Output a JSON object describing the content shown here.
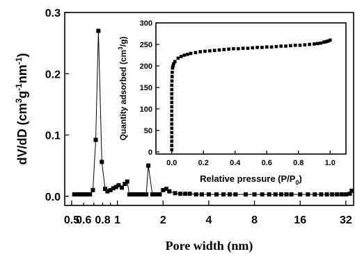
{
  "chart_data": [
    {
      "type": "line",
      "xscale": "log2",
      "xlabel": "Pore width (nm)",
      "ylabel": "dV/dD (cm3g-1nm-1)",
      "ylabel_parts": {
        "base": "dV/dD (cm",
        "e1": "3",
        "mid": "g",
        "e2": "-1",
        "mid2": "nm",
        "e3": "-1",
        "end": ")"
      },
      "xlim": [
        0.45,
        36
      ],
      "ylim": [
        -0.015,
        0.3
      ],
      "x_ticks": [
        0.5,
        1,
        2,
        4,
        8,
        16,
        32
      ],
      "x_tick_labels": [
        "0.5",
        "1",
        "2",
        "4",
        "8",
        "16",
        "32"
      ],
      "x_minor_ticks": [
        0.6,
        0.7,
        0.8,
        0.9
      ],
      "x_minor_tick_labels": [
        "0.6",
        "0.8"
      ],
      "y_ticks": [
        0.0,
        0.1,
        0.2,
        0.3
      ],
      "y_tick_labels": [
        "0.0",
        "0.1",
        "0.2",
        "0.3"
      ],
      "grid": false,
      "series": [
        {
          "marker": "square",
          "x": [
            0.52,
            0.55,
            0.58,
            0.6,
            0.63,
            0.66,
            0.69,
            0.72,
            0.75,
            0.79,
            0.83,
            0.86,
            0.9,
            0.94,
            0.98,
            1.02,
            1.07,
            1.12,
            1.16,
            1.2,
            1.25,
            1.3,
            1.36,
            1.42,
            1.48,
            1.55,
            1.6,
            1.7,
            1.8,
            1.9,
            2.0,
            2.1,
            2.2,
            2.4,
            2.6,
            2.8,
            3.0,
            3.3,
            3.6,
            4.0,
            4.5,
            5,
            5.5,
            6,
            7,
            8,
            9,
            10,
            11,
            12,
            13,
            14,
            16,
            18,
            20,
            22,
            24,
            26,
            28,
            30,
            32,
            34,
            35
          ],
          "y": [
            0.003,
            0.003,
            0.003,
            0.003,
            0.003,
            0.003,
            0.01,
            0.092,
            0.27,
            0.056,
            0.012,
            0.008,
            0.01,
            0.013,
            0.015,
            0.018,
            0.014,
            0.02,
            0.024,
            0.003,
            0.003,
            0.003,
            0.003,
            0.003,
            0.003,
            0.003,
            0.05,
            0.003,
            0.003,
            0.003,
            0.01,
            0.012,
            0.008,
            0.005,
            0.004,
            0.004,
            0.004,
            0.003,
            0.003,
            0.003,
            0.003,
            0.003,
            0.003,
            0.003,
            0.003,
            0.003,
            0.003,
            0.003,
            0.003,
            0.003,
            0.003,
            0.003,
            0.003,
            0.003,
            0.003,
            0.003,
            0.003,
            0.003,
            0.003,
            0.003,
            0.003,
            0.004,
            0.009
          ]
        }
      ]
    },
    {
      "type": "scatter",
      "inset": true,
      "xlabel": "Relative pressure (P/P0)",
      "xlabel_parts": {
        "base": "Relative pressure (P/P",
        "sub": "0",
        "end": ")"
      },
      "ylabel": "Quantity adsorbed (cm3/g)",
      "ylabel_parts": {
        "base": "Quantity adsorbed (cm",
        "sup": "3",
        "end": "/g)"
      },
      "xlim": [
        -0.1,
        1.1
      ],
      "ylim": [
        -5,
        300
      ],
      "x_ticks": [
        0.0,
        0.2,
        0.4,
        0.6,
        0.8,
        1.0
      ],
      "x_tick_labels": [
        "0.0",
        "0.2",
        "0.4",
        "0.6",
        "0.8",
        "1.0"
      ],
      "y_ticks": [
        0,
        50,
        100,
        150,
        200,
        250,
        300
      ],
      "y_tick_labels": [
        "0",
        "50",
        "100",
        "150",
        "200",
        "250",
        "300"
      ],
      "grid": false,
      "series": [
        {
          "marker": "square",
          "x": [
            0.0,
            0.0,
            0.0,
            0.0,
            0.0,
            0.0,
            0.0,
            0.0,
            0.0,
            0.0,
            0.0,
            0.0,
            0.0,
            0.0,
            0.0,
            0.0,
            0.001,
            0.002,
            0.003,
            0.005,
            0.008,
            0.012,
            0.02,
            0.04,
            0.06,
            0.08,
            0.1,
            0.12,
            0.15,
            0.18,
            0.21,
            0.24,
            0.27,
            0.3,
            0.33,
            0.36,
            0.39,
            0.42,
            0.45,
            0.48,
            0.51,
            0.54,
            0.57,
            0.6,
            0.63,
            0.66,
            0.69,
            0.72,
            0.75,
            0.78,
            0.81,
            0.84,
            0.87,
            0.9,
            0.92,
            0.94,
            0.96,
            0.97,
            0.98,
            0.99,
            1.0
          ],
          "y": [
            5,
            15,
            25,
            35,
            45,
            55,
            65,
            75,
            85,
            95,
            105,
            115,
            125,
            135,
            145,
            155,
            165,
            175,
            185,
            195,
            200,
            205,
            210,
            218,
            222,
            225,
            227,
            229,
            231,
            233,
            234,
            235,
            236,
            237,
            238,
            239,
            240,
            240,
            241,
            241,
            242,
            243,
            243,
            244,
            244,
            245,
            246,
            246,
            247,
            248,
            248,
            249,
            250,
            251,
            252,
            253,
            255,
            256,
            257,
            258,
            260
          ]
        }
      ]
    }
  ]
}
